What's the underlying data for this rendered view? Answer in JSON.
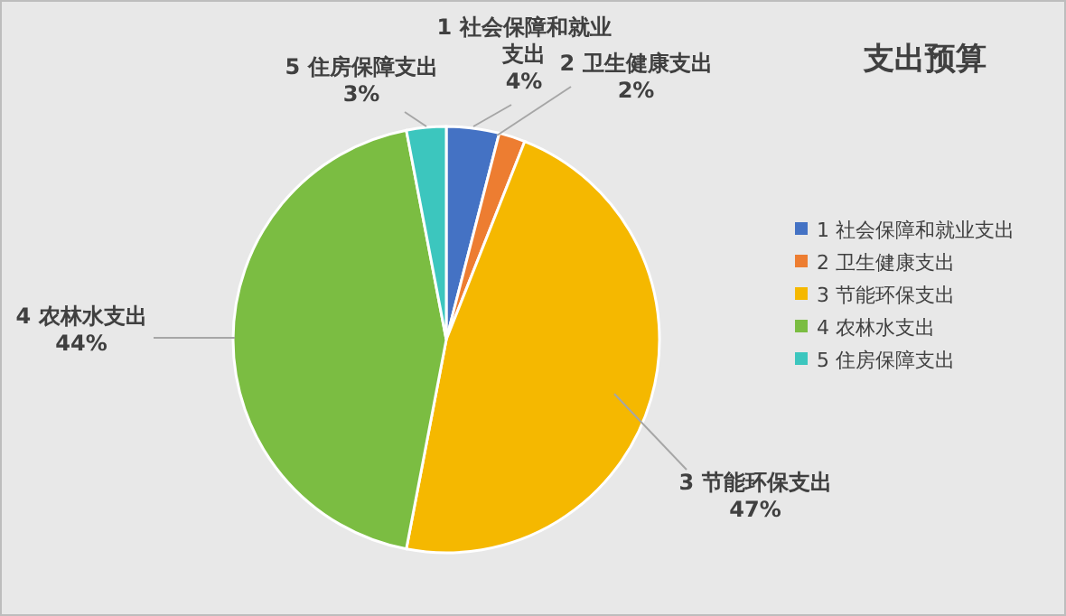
{
  "chart_data": {
    "type": "pie",
    "title": "支出预算",
    "categories": [
      "1 社会保障和就业支出",
      "2 卫生健康支出",
      "3 节能环保支出",
      "4 农林水支出",
      "5 住房保障支出"
    ],
    "values": [
      4,
      2,
      47,
      44,
      3
    ],
    "colors": [
      "#4472c4",
      "#ed7d31",
      "#f5b800",
      "#7bbd42",
      "#3cc6be"
    ],
    "data_labels": true,
    "value_labels": [
      "4%",
      "2%",
      "47%",
      "44%",
      "3%"
    ],
    "legend": "right"
  }
}
